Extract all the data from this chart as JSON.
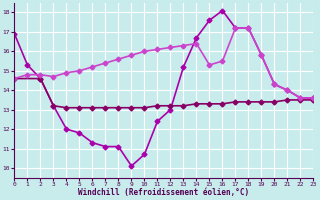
{
  "xlabel": "Windchill (Refroidissement éolien,°C)",
  "xlim": [
    0,
    23
  ],
  "ylim": [
    9.5,
    18.5
  ],
  "yticks": [
    10,
    11,
    12,
    13,
    14,
    15,
    16,
    17,
    18
  ],
  "xticks": [
    0,
    1,
    2,
    3,
    4,
    5,
    6,
    7,
    8,
    9,
    10,
    11,
    12,
    13,
    14,
    15,
    16,
    17,
    18,
    19,
    20,
    21,
    22,
    23
  ],
  "background_color": "#c8ecec",
  "grid_color": "#ffffff",
  "line1": {
    "x": [
      0,
      1,
      2,
      3,
      4,
      5,
      6,
      7,
      8,
      9,
      10,
      11,
      12,
      13,
      14,
      15,
      16,
      17,
      18,
      19,
      20,
      21,
      22,
      23
    ],
    "y": [
      16.9,
      15.3,
      14.6,
      13.2,
      12.0,
      11.8,
      11.3,
      11.1,
      11.1,
      10.1,
      10.7,
      12.4,
      13.0,
      15.2,
      16.7,
      17.6,
      18.1,
      17.2,
      17.2,
      15.8,
      14.3,
      14.0,
      13.6,
      13.6
    ],
    "color": "#aa00aa",
    "linewidth": 1.2,
    "marker": "D",
    "markersize": 2.5
  },
  "line2": {
    "x": [
      0,
      2,
      3,
      4,
      5,
      6,
      7,
      8,
      9,
      10,
      11,
      12,
      13,
      14,
      15,
      16,
      17,
      18,
      19,
      20,
      21,
      22,
      23
    ],
    "y": [
      14.6,
      14.6,
      13.2,
      13.1,
      13.1,
      13.1,
      13.1,
      13.1,
      13.1,
      13.1,
      13.2,
      13.2,
      13.2,
      13.3,
      13.3,
      13.3,
      13.4,
      13.4,
      13.4,
      13.4,
      13.5,
      13.5,
      13.5
    ],
    "color": "#880066",
    "linewidth": 1.2,
    "marker": "D",
    "markersize": 2.5
  },
  "line3": {
    "x": [
      0,
      1,
      2,
      3,
      4,
      5,
      6,
      7,
      8,
      9,
      10,
      11,
      12,
      13,
      14,
      15,
      16,
      17,
      18,
      19,
      20,
      21,
      22,
      23
    ],
    "y": [
      14.6,
      14.8,
      14.8,
      14.7,
      14.9,
      15.0,
      15.2,
      15.4,
      15.6,
      15.8,
      16.0,
      16.1,
      16.2,
      16.3,
      16.4,
      15.3,
      15.5,
      17.2,
      17.2,
      15.8,
      14.3,
      14.0,
      13.6,
      13.6
    ],
    "color": "#cc44cc",
    "linewidth": 1.2,
    "marker": "D",
    "markersize": 2.5
  }
}
